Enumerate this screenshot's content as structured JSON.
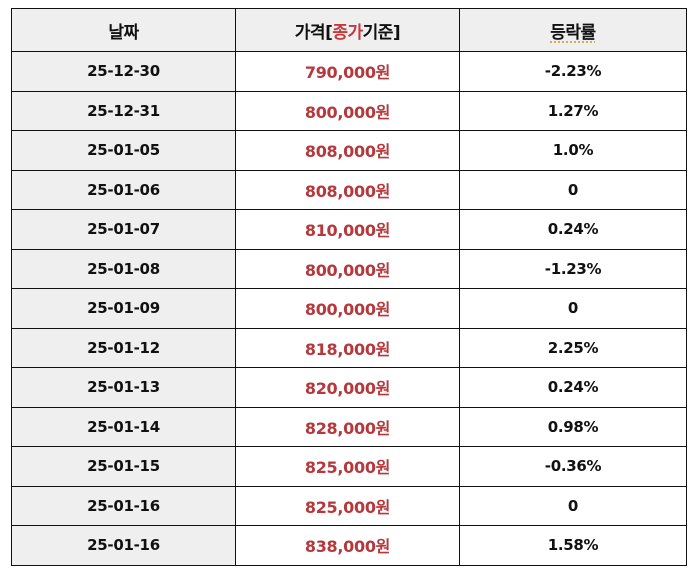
{
  "table": {
    "headers": {
      "date": "날짜",
      "price_prefix": "가격[",
      "price_highlight": "종가",
      "price_suffix": "기준]",
      "change": "등락률"
    },
    "colors": {
      "price_text": "#b5383c",
      "highlight_text": "#c23a3e",
      "header_bg": "#efefef",
      "date_col_bg": "#efefef",
      "border": "#111111"
    },
    "rows": [
      {
        "date": "25-12-30",
        "price": "790,000원",
        "change": "-2.23%"
      },
      {
        "date": "25-12-31",
        "price": "800,000원",
        "change": "1.27%"
      },
      {
        "date": "25-01-05",
        "price": "808,000원",
        "change": "1.0%"
      },
      {
        "date": "25-01-06",
        "price": "808,000원",
        "change": "0"
      },
      {
        "date": "25-01-07",
        "price": "810,000원",
        "change": "0.24%"
      },
      {
        "date": "25-01-08",
        "price": "800,000원",
        "change": "-1.23%"
      },
      {
        "date": "25-01-09",
        "price": "800,000원",
        "change": "0"
      },
      {
        "date": "25-01-12",
        "price": "818,000원",
        "change": "2.25%"
      },
      {
        "date": "25-01-13",
        "price": "820,000원",
        "change": "0.24%"
      },
      {
        "date": "25-01-14",
        "price": "828,000원",
        "change": "0.98%"
      },
      {
        "date": "25-01-15",
        "price": "825,000원",
        "change": "-0.36%"
      },
      {
        "date": "25-01-16",
        "price": "825,000원",
        "change": "0"
      },
      {
        "date": "25-01-16",
        "price": "838,000원",
        "change": "1.58%"
      }
    ]
  }
}
